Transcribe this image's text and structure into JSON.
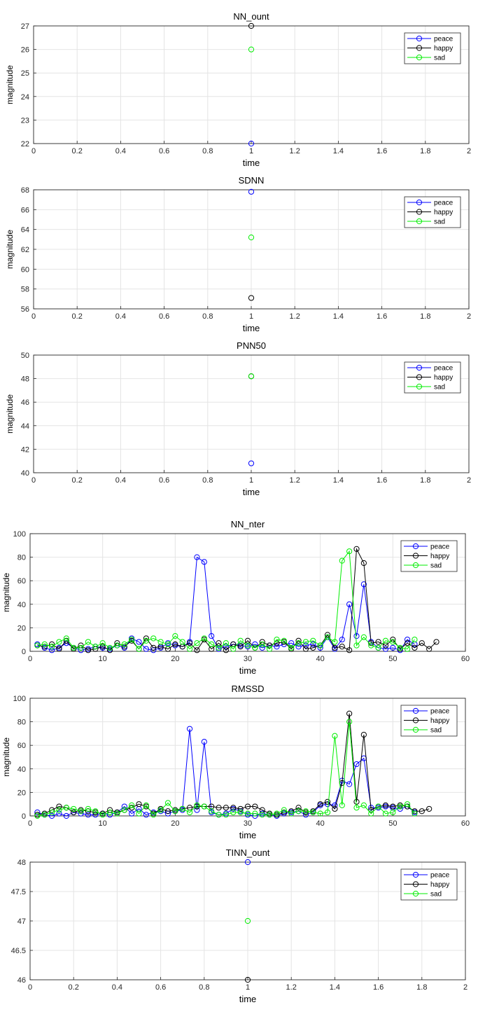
{
  "colors": {
    "peace": "#0000ff",
    "happy": "#000000",
    "sad": "#00ee00",
    "grid": "#e4e4e4",
    "axis": "#262626"
  },
  "chart_data": [
    {
      "type": "scatter",
      "title": "NN_ount",
      "xlabel": "time",
      "ylabel": "magnitude",
      "xlim": [
        0,
        2
      ],
      "ylim": [
        22,
        27
      ],
      "xticks": [
        "0",
        "0.2",
        "0.4",
        "0.6",
        "0.8",
        "1",
        "1.2",
        "1.4",
        "1.6",
        "1.8",
        "2"
      ],
      "yticks": [
        "22",
        "23",
        "24",
        "25",
        "26",
        "27"
      ],
      "grid": true,
      "legend": "top-right",
      "series": [
        {
          "name": "peace",
          "x": [
            1
          ],
          "y": [
            22
          ]
        },
        {
          "name": "happy",
          "x": [
            1
          ],
          "y": [
            27
          ]
        },
        {
          "name": "sad",
          "x": [
            1
          ],
          "y": [
            26
          ]
        }
      ]
    },
    {
      "type": "scatter",
      "title": "SDNN",
      "xlabel": "time",
      "ylabel": "magnitude",
      "xlim": [
        0,
        2
      ],
      "ylim": [
        56,
        68
      ],
      "xticks": [
        "0",
        "0.2",
        "0.4",
        "0.6",
        "0.8",
        "1",
        "1.2",
        "1.4",
        "1.6",
        "1.8",
        "2"
      ],
      "yticks": [
        "56",
        "58",
        "60",
        "62",
        "64",
        "66",
        "68"
      ],
      "grid": true,
      "legend": "top-right",
      "series": [
        {
          "name": "peace",
          "x": [
            1
          ],
          "y": [
            67.8
          ]
        },
        {
          "name": "happy",
          "x": [
            1
          ],
          "y": [
            57.1
          ]
        },
        {
          "name": "sad",
          "x": [
            1
          ],
          "y": [
            63.2
          ]
        }
      ]
    },
    {
      "type": "scatter",
      "title": "PNN50",
      "xlabel": "time",
      "ylabel": "magnitude",
      "xlim": [
        0,
        2
      ],
      "ylim": [
        40,
        50
      ],
      "xticks": [
        "0",
        "0.2",
        "0.4",
        "0.6",
        "0.8",
        "1",
        "1.2",
        "1.4",
        "1.6",
        "1.8",
        "2"
      ],
      "yticks": [
        "40",
        "42",
        "44",
        "46",
        "48",
        "50"
      ],
      "grid": true,
      "legend": "top-right",
      "series": [
        {
          "name": "peace",
          "x": [
            1
          ],
          "y": [
            40.8
          ]
        },
        {
          "name": "happy",
          "x": [
            1
          ],
          "y": [
            48.2
          ]
        },
        {
          "name": "sad",
          "x": [
            1
          ],
          "y": [
            48.2
          ]
        }
      ]
    },
    {
      "type": "line",
      "title": "NN_nter",
      "xlabel": "time",
      "ylabel": "magnitude",
      "xlim": [
        0,
        60
      ],
      "ylim": [
        0,
        100
      ],
      "xticks": [
        "0",
        "10",
        "20",
        "30",
        "40",
        "50",
        "60"
      ],
      "yticks": [
        "0",
        "20",
        "40",
        "60",
        "80",
        "100"
      ],
      "grid": true,
      "legend": "top-right",
      "series": [
        {
          "name": "peace",
          "x": [
            1,
            2,
            3,
            4,
            5,
            6,
            7,
            8,
            9,
            10,
            11,
            12,
            13,
            14,
            15,
            16,
            17,
            18,
            19,
            20,
            21,
            22,
            23,
            24,
            25,
            26,
            27,
            28,
            29,
            30,
            31,
            32,
            33,
            34,
            35,
            36,
            37,
            38,
            39,
            40,
            41,
            42,
            43,
            44,
            45,
            46,
            47,
            48,
            49,
            50,
            51,
            52,
            53
          ],
          "y": [
            6,
            3,
            1,
            3,
            7,
            3,
            1,
            2,
            4,
            3,
            2,
            5,
            3,
            11,
            8,
            2,
            1,
            3,
            7,
            5,
            4,
            8,
            80,
            76,
            13,
            2,
            4,
            6,
            5,
            4,
            6,
            3,
            5,
            4,
            6,
            7,
            4,
            5,
            6,
            3,
            12,
            2,
            10,
            40,
            13,
            57,
            8,
            3,
            2,
            3,
            1,
            10,
            6
          ]
        },
        {
          "name": "happy",
          "x": [
            1,
            2,
            3,
            4,
            5,
            6,
            7,
            8,
            9,
            10,
            11,
            12,
            13,
            14,
            15,
            16,
            17,
            18,
            19,
            20,
            21,
            22,
            23,
            24,
            25,
            26,
            27,
            28,
            29,
            30,
            31,
            32,
            33,
            34,
            35,
            36,
            37,
            38,
            39,
            40,
            41,
            42,
            43,
            44,
            45,
            46,
            47,
            48,
            49,
            50,
            51,
            52,
            53,
            54,
            55,
            56
          ],
          "y": [
            5,
            4,
            6,
            2,
            9,
            2,
            5,
            1,
            2,
            4,
            1,
            7,
            4,
            9,
            2,
            11,
            3,
            4,
            2,
            6,
            4,
            7,
            1,
            10,
            2,
            7,
            1,
            6,
            4,
            9,
            3,
            8,
            5,
            7,
            8,
            2,
            9,
            2,
            3,
            5,
            14,
            3,
            4,
            1,
            87,
            75,
            7,
            8,
            5,
            10,
            2,
            7,
            3,
            7,
            2,
            8
          ]
        },
        {
          "name": "sad",
          "x": [
            1,
            2,
            3,
            4,
            5,
            6,
            7,
            8,
            9,
            10,
            11,
            12,
            13,
            14,
            15,
            16,
            17,
            18,
            19,
            20,
            21,
            22,
            23,
            24,
            25,
            26,
            27,
            28,
            29,
            30,
            31,
            32,
            33,
            34,
            35,
            36,
            37,
            38,
            39,
            40,
            41,
            42,
            43,
            44,
            45,
            46,
            47,
            48,
            49,
            50,
            51,
            52,
            53
          ],
          "y": [
            5,
            6,
            4,
            8,
            11,
            3,
            3,
            8,
            4,
            7,
            3,
            5,
            6,
            10,
            2,
            9,
            11,
            8,
            6,
            13,
            8,
            2,
            7,
            11,
            6,
            3,
            7,
            2,
            9,
            5,
            3,
            6,
            2,
            10,
            9,
            3,
            7,
            8,
            9,
            5,
            12,
            8,
            77,
            85,
            5,
            12,
            5,
            3,
            9,
            8,
            3,
            2,
            10
          ]
        }
      ]
    },
    {
      "type": "line",
      "title": "RMSSD",
      "xlabel": "time",
      "ylabel": "magnitude",
      "xlim": [
        0,
        60
      ],
      "ylim": [
        0,
        100
      ],
      "xticks": [
        "0",
        "10",
        "20",
        "30",
        "40",
        "50",
        "60"
      ],
      "yticks": [
        "0",
        "20",
        "40",
        "60",
        "80",
        "100"
      ],
      "grid": true,
      "legend": "top-right",
      "series": [
        {
          "name": "peace",
          "x": [
            1,
            2,
            3,
            4,
            5,
            6,
            7,
            8,
            9,
            10,
            11,
            12,
            13,
            14,
            15,
            16,
            17,
            18,
            19,
            20,
            21,
            22,
            23,
            24,
            25,
            26,
            27,
            28,
            29,
            30,
            31,
            32,
            33,
            34,
            35,
            36,
            37,
            38,
            39,
            40,
            41,
            42,
            43,
            44,
            45,
            46,
            47,
            48,
            49,
            50,
            51,
            52,
            53
          ],
          "y": [
            3,
            1,
            0,
            2,
            0,
            3,
            2,
            1,
            1,
            2,
            1,
            3,
            8,
            2,
            6,
            1,
            3,
            4,
            2,
            4,
            5,
            74,
            5,
            63,
            3,
            1,
            2,
            6,
            4,
            1,
            0,
            2,
            1,
            0,
            2,
            3,
            4,
            1,
            3,
            9,
            10,
            9,
            30,
            27,
            44,
            49,
            7,
            7,
            8,
            7,
            6,
            8,
            3
          ]
        },
        {
          "name": "happy",
          "x": [
            1,
            2,
            3,
            4,
            5,
            6,
            7,
            8,
            9,
            10,
            11,
            12,
            13,
            14,
            15,
            16,
            17,
            18,
            19,
            20,
            21,
            22,
            23,
            24,
            25,
            26,
            27,
            28,
            29,
            30,
            31,
            32,
            33,
            34,
            35,
            36,
            37,
            38,
            39,
            40,
            41,
            42,
            43,
            44,
            45,
            46,
            47,
            48,
            49,
            50,
            51,
            52,
            53,
            54,
            55
          ],
          "y": [
            1,
            2,
            5,
            8,
            7,
            3,
            5,
            4,
            3,
            2,
            5,
            3,
            5,
            7,
            10,
            8,
            2,
            6,
            4,
            5,
            6,
            7,
            8,
            8,
            8,
            7,
            7,
            7,
            6,
            8,
            8,
            5,
            2,
            1,
            3,
            4,
            7,
            3,
            4,
            10,
            12,
            6,
            28,
            87,
            12,
            69,
            5,
            8,
            9,
            8,
            9,
            8,
            4,
            4,
            6
          ]
        },
        {
          "name": "sad",
          "x": [
            1,
            2,
            3,
            4,
            5,
            6,
            7,
            8,
            9,
            10,
            11,
            12,
            13,
            14,
            15,
            16,
            17,
            18,
            19,
            20,
            21,
            22,
            23,
            24,
            25,
            26,
            27,
            28,
            29,
            30,
            31,
            32,
            33,
            34,
            35,
            36,
            37,
            38,
            39,
            40,
            41,
            42,
            43,
            44,
            45,
            46,
            47,
            48,
            49,
            50,
            51,
            52,
            53
          ],
          "y": [
            0,
            1,
            3,
            5,
            7,
            6,
            4,
            6,
            4,
            1,
            3,
            2,
            5,
            9,
            2,
            9,
            1,
            5,
            11,
            4,
            6,
            3,
            9,
            8,
            4,
            1,
            1,
            3,
            3,
            2,
            2,
            1,
            1,
            2,
            5,
            2,
            4,
            4,
            3,
            2,
            3,
            68,
            9,
            80,
            7,
            9,
            2,
            8,
            2,
            3,
            8,
            10,
            2
          ]
        }
      ]
    },
    {
      "type": "scatter",
      "title": "TINN_ount",
      "xlabel": "time",
      "ylabel": "",
      "xlim": [
        0,
        2
      ],
      "ylim": [
        46,
        48
      ],
      "xticks": [
        "0",
        "0.2",
        "0.4",
        "0.6",
        "0.8",
        "1",
        "1.2",
        "1.4",
        "1.6",
        "1.8",
        "2"
      ],
      "yticks": [
        "46",
        "46.5",
        "47",
        "47.5",
        "48"
      ],
      "grid": true,
      "legend": "top-right",
      "series": [
        {
          "name": "peace",
          "x": [
            1
          ],
          "y": [
            48
          ]
        },
        {
          "name": "happy",
          "x": [
            1
          ],
          "y": [
            46
          ]
        },
        {
          "name": "sad",
          "x": [
            1
          ],
          "y": [
            47
          ]
        }
      ]
    }
  ]
}
